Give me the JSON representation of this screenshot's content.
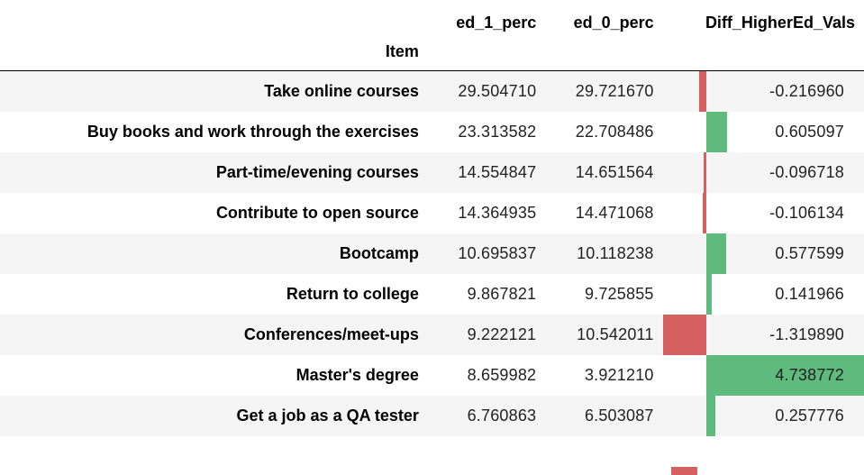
{
  "table": {
    "columns": {
      "ed_1": "ed_1_perc",
      "ed_0": "ed_0_perc",
      "diff": "Diff_HigherEd_Vals"
    },
    "index_name": "Item",
    "diff_scale": {
      "min": -1.31989,
      "max": 4.738772
    },
    "colors": {
      "negative": "#d65f5f",
      "positive": "#5fba7d"
    },
    "rows": [
      {
        "item": "Take online courses",
        "ed_1": "29.504710",
        "ed_0": "29.721670",
        "diff": "-0.216960",
        "diff_value": -0.21696
      },
      {
        "item": "Buy books and work through the exercises",
        "ed_1": "23.313582",
        "ed_0": "22.708486",
        "diff": "0.605097",
        "diff_value": 0.605097
      },
      {
        "item": "Part-time/evening courses",
        "ed_1": "14.554847",
        "ed_0": "14.651564",
        "diff": "-0.096718",
        "diff_value": -0.096718
      },
      {
        "item": "Contribute to open source",
        "ed_1": "14.364935",
        "ed_0": "14.471068",
        "diff": "-0.106134",
        "diff_value": -0.106134
      },
      {
        "item": "Bootcamp",
        "ed_1": "10.695837",
        "ed_0": "10.118238",
        "diff": "0.577599",
        "diff_value": 0.577599
      },
      {
        "item": "Return to college",
        "ed_1": "9.867821",
        "ed_0": "9.725855",
        "diff": "0.141966",
        "diff_value": 0.141966
      },
      {
        "item": "Conferences/meet-ups",
        "ed_1": "9.222121",
        "ed_0": "10.542011",
        "diff": "-1.319890",
        "diff_value": -1.31989
      },
      {
        "item": "Master's degree",
        "ed_1": "8.659982",
        "ed_0": "3.921210",
        "diff": "4.738772",
        "diff_value": 4.738772
      },
      {
        "item": "Get a job as a QA tester",
        "ed_1": "6.760863",
        "ed_0": "6.503087",
        "diff": "0.257776",
        "diff_value": 0.257776
      }
    ]
  }
}
